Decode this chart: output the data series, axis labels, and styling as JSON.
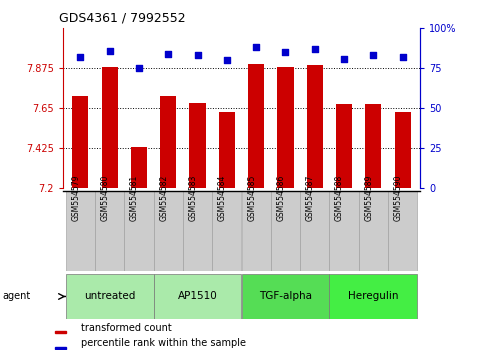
{
  "title": "GDS4361 / 7992552",
  "samples": [
    "GSM554579",
    "GSM554580",
    "GSM554581",
    "GSM554582",
    "GSM554583",
    "GSM554584",
    "GSM554585",
    "GSM554586",
    "GSM554587",
    "GSM554588",
    "GSM554589",
    "GSM554590"
  ],
  "red_values": [
    7.72,
    7.88,
    7.43,
    7.72,
    7.68,
    7.63,
    7.9,
    7.88,
    7.895,
    7.67,
    7.67,
    7.63
  ],
  "blue_values": [
    82,
    86,
    75,
    84,
    83,
    80,
    88,
    85,
    87,
    81,
    83,
    82
  ],
  "ylim_left": [
    7.2,
    8.1
  ],
  "ylim_right": [
    0,
    100
  ],
  "yticks_left": [
    7.2,
    7.425,
    7.65,
    7.875
  ],
  "ytick_labels_left": [
    "7.2",
    "7.425",
    "7.65",
    "7.875"
  ],
  "yticks_right": [
    0,
    25,
    50,
    75,
    100
  ],
  "ytick_labels_right": [
    "0",
    "25",
    "50",
    "75",
    "100%"
  ],
  "groups": [
    {
      "label": "untreated",
      "start": 0,
      "end": 3,
      "color": "#aaeaaa"
    },
    {
      "label": "AP1510",
      "start": 3,
      "end": 6,
      "color": "#aaeaaa"
    },
    {
      "label": "TGF-alpha",
      "start": 6,
      "end": 9,
      "color": "#55dd55"
    },
    {
      "label": "Heregulin",
      "start": 9,
      "end": 12,
      "color": "#44ee44"
    }
  ],
  "bar_color": "#cc0000",
  "dot_color": "#0000cc",
  "bar_width": 0.55,
  "grid_color": "#000000",
  "label_bg_color": "#cccccc",
  "legend_items": [
    "transformed count",
    "percentile rank within the sample"
  ],
  "legend_colors": [
    "#cc0000",
    "#0000cc"
  ]
}
